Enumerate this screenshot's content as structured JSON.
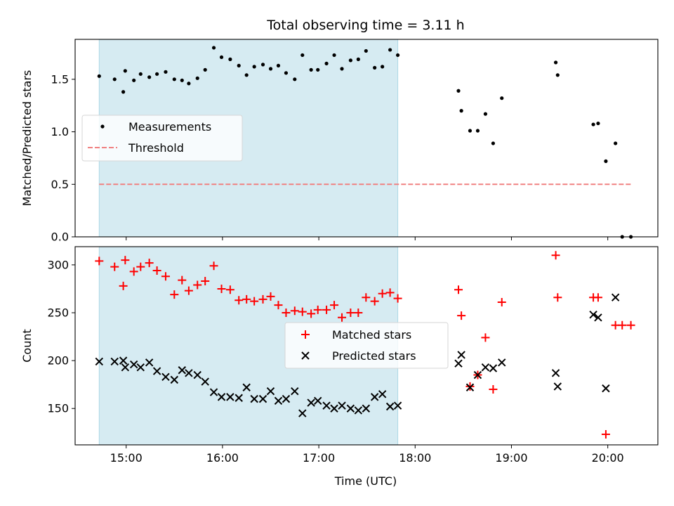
{
  "chart_data": {
    "type": "scatter",
    "title": "Total observing time = 3.11 h",
    "xlabel": "Time (UTC)",
    "x_ticks": [
      "15:00",
      "16:00",
      "17:00",
      "18:00",
      "19:00",
      "20:00"
    ],
    "x_tick_hours": [
      15,
      16,
      17,
      18,
      19,
      20
    ],
    "xlim_hours": [
      14.47,
      20.52
    ],
    "highlight_span_hours": [
      14.72,
      17.82
    ],
    "highlight_color": "#add8e6",
    "panels": [
      {
        "ylabel": "Matched/Predicted stars",
        "ylim": [
          0,
          1.88
        ],
        "y_ticks": [
          0.0,
          0.5,
          1.0,
          1.5
        ],
        "y_tick_labels": [
          "0.0",
          "0.5",
          "1.0",
          "1.5"
        ],
        "legend_position": "center-left",
        "series": [
          {
            "name": "Measurements",
            "marker": "dot",
            "color": "#000000",
            "x": [
              14.72,
              14.88,
              14.97,
              14.99,
              15.08,
              15.15,
              15.24,
              15.32,
              15.41,
              15.5,
              15.58,
              15.65,
              15.74,
              15.82,
              15.91,
              15.99,
              16.08,
              16.17,
              16.25,
              16.33,
              16.42,
              16.5,
              16.58,
              16.66,
              16.75,
              16.83,
              16.92,
              16.99,
              17.08,
              17.16,
              17.24,
              17.33,
              17.41,
              17.49,
              17.58,
              17.66,
              17.74,
              17.82,
              18.45,
              18.48,
              18.57,
              18.65,
              18.73,
              18.81,
              18.9,
              19.46,
              19.48,
              19.85,
              19.9,
              19.98,
              20.08,
              20.15,
              20.24
            ],
            "y": [
              1.53,
              1.5,
              1.38,
              1.58,
              1.49,
              1.55,
              1.52,
              1.55,
              1.57,
              1.5,
              1.49,
              1.46,
              1.51,
              1.59,
              1.8,
              1.71,
              1.69,
              1.63,
              1.54,
              1.62,
              1.64,
              1.6,
              1.63,
              1.56,
              1.5,
              1.73,
              1.59,
              1.59,
              1.65,
              1.73,
              1.6,
              1.68,
              1.69,
              1.77,
              1.61,
              1.62,
              1.78,
              1.73,
              1.39,
              1.2,
              1.01,
              1.01,
              1.17,
              0.89,
              1.32,
              1.66,
              1.54,
              1.07,
              1.08,
              0.72,
              0.89,
              0.0,
              0.0
            ]
          },
          {
            "name": "Threshold",
            "marker": "dashed-line",
            "color": "#f08080",
            "x": [
              14.72,
              20.24
            ],
            "y": [
              0.5,
              0.5
            ]
          }
        ]
      },
      {
        "ylabel": "Count",
        "ylim": [
          112,
          319
        ],
        "y_ticks": [
          150,
          200,
          250,
          300
        ],
        "y_tick_labels": [
          "150",
          "200",
          "250",
          "300"
        ],
        "legend_position": "center",
        "series": [
          {
            "name": "Matched stars",
            "marker": "plus",
            "color": "#ff0000",
            "x": [
              14.72,
              14.88,
              14.97,
              14.99,
              15.08,
              15.15,
              15.24,
              15.32,
              15.41,
              15.5,
              15.58,
              15.65,
              15.74,
              15.82,
              15.91,
              15.99,
              16.08,
              16.17,
              16.25,
              16.33,
              16.42,
              16.5,
              16.58,
              16.66,
              16.75,
              16.83,
              16.92,
              16.99,
              17.08,
              17.16,
              17.24,
              17.33,
              17.41,
              17.49,
              17.58,
              17.66,
              17.74,
              17.82,
              18.45,
              18.48,
              18.57,
              18.65,
              18.73,
              18.81,
              18.9,
              19.46,
              19.48,
              19.85,
              19.9,
              19.98,
              20.08,
              20.15,
              20.24
            ],
            "y": [
              304,
              298,
              278,
              305,
              293,
              298,
              302,
              294,
              288,
              269,
              284,
              273,
              279,
              283,
              299,
              275,
              274,
              263,
              264,
              262,
              264,
              267,
              258,
              250,
              252,
              251,
              249,
              253,
              253,
              258,
              245,
              250,
              250,
              266,
              262,
              270,
              271,
              265,
              274,
              247,
              173,
              185,
              224,
              170,
              261,
              310,
              266,
              266,
              266,
              123,
              237,
              237,
              237
            ]
          },
          {
            "name": "Predicted stars",
            "marker": "x",
            "color": "#000000",
            "x": [
              14.72,
              14.88,
              14.97,
              14.99,
              15.08,
              15.15,
              15.24,
              15.32,
              15.41,
              15.5,
              15.58,
              15.65,
              15.74,
              15.82,
              15.91,
              15.99,
              16.08,
              16.17,
              16.25,
              16.33,
              16.42,
              16.5,
              16.58,
              16.66,
              16.75,
              16.83,
              16.92,
              16.99,
              17.08,
              17.16,
              17.24,
              17.33,
              17.41,
              17.49,
              17.58,
              17.66,
              17.74,
              17.82,
              18.45,
              18.48,
              18.57,
              18.65,
              18.73,
              18.81,
              18.9,
              19.46,
              19.48,
              19.85,
              19.9,
              19.98,
              20.08
            ],
            "y": [
              199,
              199,
              200,
              193,
              196,
              193,
              198,
              189,
              183,
              180,
              190,
              187,
              185,
              178,
              167,
              162,
              162,
              161,
              172,
              160,
              160,
              168,
              158,
              160,
              168,
              145,
              156,
              158,
              153,
              150,
              153,
              150,
              148,
              150,
              162,
              165,
              152,
              153,
              197,
              206,
              172,
              185,
              193,
              192,
              198,
              187,
              173,
              248,
              245,
              171,
              266
            ]
          }
        ]
      }
    ]
  }
}
